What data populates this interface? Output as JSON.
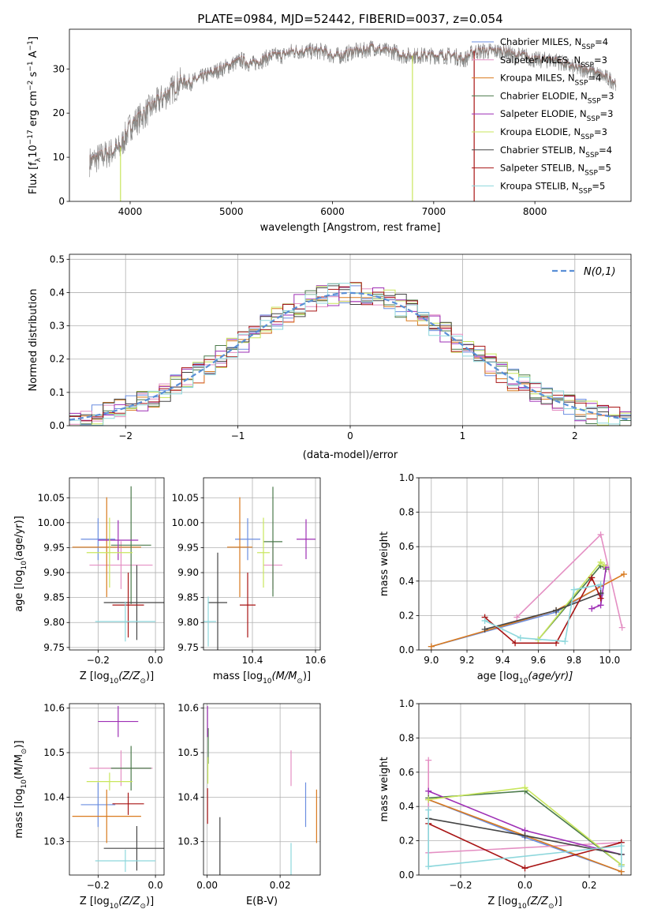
{
  "title": "PLATE=0984, MJD=52442, FIBERID=0037, z=0.054",
  "colors": [
    "#6b8ee0",
    "#e48fc3",
    "#d97a1e",
    "#4b7a4b",
    "#9e2fb5",
    "#c8e65c",
    "#454545",
    "#a81414",
    "#8dd7dc"
  ],
  "gauss_color": "#5a8fd6",
  "chart_data": [
    {
      "id": "spectrum",
      "type": "line",
      "xlabel": "wavelength [Angstrom, rest frame]",
      "ylabel": "Flux [f",
      "ylabel_sub": "λ",
      "ylabel_rest": "10",
      "ylabel_exp": "−17",
      "ylabel_tail": " erg cm",
      "ylabel_exp2": "−2",
      "ylabel_tail2": " s",
      "ylabel_exp3": "−1",
      "ylabel_tail3": " A",
      "ylabel_exp4": "−1",
      "ylabel_end": "]",
      "xlim": [
        3400,
        8950
      ],
      "ylim": [
        0,
        39
      ],
      "xticks": [
        "4000",
        "5000",
        "6000",
        "7000",
        "8000"
      ],
      "xtick_vals": [
        4000,
        5000,
        6000,
        7000,
        8000
      ],
      "yticks": [
        "0",
        "10",
        "20",
        "30"
      ],
      "ytick_vals": [
        0,
        10,
        20,
        30
      ],
      "x": [
        3600,
        3700,
        3800,
        3900,
        4000,
        4100,
        4200,
        4300,
        4400,
        4500,
        4600,
        4700,
        4800,
        4900,
        5000,
        5100,
        5200,
        5300,
        5400,
        5500,
        5600,
        5700,
        5800,
        5900,
        6000,
        6100,
        6200,
        6300,
        6400,
        6500,
        6600,
        6700,
        6800,
        6900,
        7000,
        7100,
        7200,
        7300,
        7400,
        7500,
        7600,
        7700,
        7800,
        7900,
        8000,
        8100,
        8200,
        8300,
        8400,
        8500,
        8600,
        8700,
        8800
      ],
      "y": [
        9,
        10,
        11,
        12,
        17,
        19,
        21,
        23,
        25,
        27,
        27,
        28,
        29,
        30,
        31,
        32,
        31,
        32,
        33,
        33,
        34,
        34,
        34,
        34,
        33,
        33,
        34,
        34,
        35,
        34,
        34,
        33,
        33,
        33,
        33,
        33,
        33,
        32,
        34,
        34,
        34,
        34,
        33,
        33,
        32,
        32,
        32,
        31,
        30,
        30,
        29,
        28,
        27
      ],
      "legend_position": "upper right",
      "series": [
        {
          "name": "Chabrier MILES",
          "nssp": "4"
        },
        {
          "name": "Salpeter MILES",
          "nssp": "3"
        },
        {
          "name": "Kroupa MILES",
          "nssp": "4"
        },
        {
          "name": "Chabrier ELODIE",
          "nssp": "3"
        },
        {
          "name": "Salpeter ELODIE",
          "nssp": "3"
        },
        {
          "name": "Kroupa ELODIE",
          "nssp": "3"
        },
        {
          "name": "Chabrier STELIB",
          "nssp": "4"
        },
        {
          "name": "Salpeter STELIB",
          "nssp": "5"
        },
        {
          "name": "Kroupa STELIB",
          "nssp": "5"
        }
      ],
      "nssp_label": "N",
      "nssp_sub": "SSP"
    },
    {
      "id": "residuals",
      "type": "histogram",
      "xlabel": "(data-model)/error",
      "ylabel": "Normed distribution",
      "xlim": [
        -2.5,
        2.5
      ],
      "ylim": [
        0,
        0.515
      ],
      "xticks": [
        "−2",
        "−1",
        "0",
        "1",
        "2"
      ],
      "xtick_vals": [
        -2,
        -1,
        0,
        1,
        2
      ],
      "yticks": [
        "0.0",
        "0.1",
        "0.2",
        "0.3",
        "0.4",
        "0.5"
      ],
      "ytick_vals": [
        0,
        0.1,
        0.2,
        0.3,
        0.4,
        0.5
      ],
      "grid": true,
      "legend_label": "N(0,1)",
      "legend_position": "upper right"
    },
    {
      "id": "age_vs_Z",
      "type": "scatter",
      "xlabel": "Z [log",
      "xlabel_sub": "10",
      "xlabel_rest": "(Z/Z",
      "xlabel_sub2": "⊙",
      "xlabel_end": ")]",
      "ylabel": "age  [log",
      "ylabel_sub": "10",
      "ylabel_rest": "(age/yr)]",
      "xlim": [
        -0.3,
        0.03
      ],
      "ylim": [
        9.745,
        10.09
      ],
      "xticks": [
        "−0.2",
        "0.0"
      ],
      "xtick_vals": [
        -0.2,
        0.0
      ],
      "yticks": [
        "9.75",
        "9.80",
        "9.85",
        "9.90",
        "9.95",
        "10.00",
        "10.05"
      ],
      "ytick_vals": [
        9.75,
        9.8,
        9.85,
        9.9,
        9.95,
        10.0,
        10.05
      ],
      "grid": true,
      "points": [
        {
          "x": -0.2,
          "y": 9.967,
          "xerr": 0.06,
          "yerr": 0.042
        },
        {
          "x": -0.12,
          "y": 9.915,
          "xerr": 0.11,
          "yerr": 0.048
        },
        {
          "x": -0.17,
          "y": 9.951,
          "xerr": 0.12,
          "yerr": 0.1
        },
        {
          "x": -0.085,
          "y": 9.955,
          "xerr": 0.07,
          "yerr": 0.118
        },
        {
          "x": -0.13,
          "y": 9.965,
          "xerr": 0.07,
          "yerr": 0.04
        },
        {
          "x": -0.16,
          "y": 9.94,
          "xerr": 0.08,
          "yerr": 0.07
        },
        {
          "x": -0.065,
          "y": 9.84,
          "xerr": 0.115,
          "yerr": 0.075
        },
        {
          "x": -0.095,
          "y": 9.835,
          "xerr": 0.055,
          "yerr": 0.065
        },
        {
          "x": -0.105,
          "y": 9.802,
          "xerr": 0.105,
          "yerr": 0.04
        }
      ]
    },
    {
      "id": "age_vs_mass",
      "type": "scatter",
      "xlabel": "mass [log",
      "xlabel_sub": "10",
      "xlabel_rest": "(M/M",
      "xlabel_sub2": "⊙",
      "xlabel_end": ")]",
      "xlim": [
        10.245,
        10.615
      ],
      "ylim": [
        9.745,
        10.09
      ],
      "xticks": [
        "10.4",
        "10.6"
      ],
      "xtick_vals": [
        10.4,
        10.6
      ],
      "yticks": [
        "9.75",
        "9.80",
        "9.85",
        "9.90",
        "9.95",
        "10.00",
        "10.05"
      ],
      "ytick_vals": [
        9.75,
        9.8,
        9.85,
        9.9,
        9.95,
        10.0,
        10.05
      ],
      "grid": true,
      "points": [
        {
          "x": 10.385,
          "y": 9.967,
          "xerr": 0.04,
          "yerr": 0.042
        },
        {
          "x": 10.465,
          "y": 9.915,
          "xerr": 0.03,
          "yerr": 0.048
        },
        {
          "x": 10.36,
          "y": 9.951,
          "xerr": 0.04,
          "yerr": 0.1
        },
        {
          "x": 10.465,
          "y": 9.962,
          "xerr": 0.03,
          "yerr": 0.11
        },
        {
          "x": 10.57,
          "y": 9.967,
          "xerr": 0.03,
          "yerr": 0.04
        },
        {
          "x": 10.435,
          "y": 9.94,
          "xerr": 0.02,
          "yerr": 0.07
        },
        {
          "x": 10.29,
          "y": 9.84,
          "xerr": 0.03,
          "yerr": 0.1
        },
        {
          "x": 10.385,
          "y": 9.835,
          "xerr": 0.025,
          "yerr": 0.065
        },
        {
          "x": 10.26,
          "y": 9.802,
          "xerr": 0.025,
          "yerr": 0.05
        }
      ]
    },
    {
      "id": "weight_vs_age",
      "type": "line",
      "xlabel": "age  [log",
      "xlabel_sub": "10",
      "xlabel_rest": "(age/yr)]",
      "ylabel": "mass weight",
      "xlim": [
        8.93,
        10.12
      ],
      "ylim": [
        0,
        1.0
      ],
      "xticks": [
        "9.0",
        "9.2",
        "9.4",
        "9.6",
        "9.8",
        "10.0"
      ],
      "xtick_vals": [
        9.0,
        9.2,
        9.4,
        9.6,
        9.8,
        10.0
      ],
      "yticks": [
        "0.0",
        "0.2",
        "0.4",
        "0.6",
        "0.8",
        "1.0"
      ],
      "ytick_vals": [
        0,
        0.2,
        0.4,
        0.6,
        0.8,
        1.0
      ],
      "grid": true,
      "series": [
        {
          "x": [
            9.0,
            9.7,
            9.95,
            9.95
          ],
          "y": [
            0.02,
            0.22,
            0.37,
            0.32
          ]
        },
        {
          "x": [
            9.48,
            9.95,
            10.07
          ],
          "y": [
            0.19,
            0.67,
            0.13
          ]
        },
        {
          "x": [
            9.0,
            9.7,
            10.08
          ],
          "y": [
            0.02,
            0.23,
            0.44
          ]
        },
        {
          "x": [
            9.6,
            9.95,
            9.98
          ],
          "y": [
            0.06,
            0.49,
            0.47
          ]
        },
        {
          "x": [
            9.9,
            9.95,
            9.98
          ],
          "y": [
            0.24,
            0.26,
            0.48
          ]
        },
        {
          "x": [
            9.6,
            9.95,
            9.97
          ],
          "y": [
            0.06,
            0.51,
            0.49
          ]
        },
        {
          "x": [
            9.3,
            9.7,
            9.95
          ],
          "y": [
            0.12,
            0.23,
            0.33
          ]
        },
        {
          "x": [
            9.3,
            9.47,
            9.7,
            9.9,
            9.95
          ],
          "y": [
            0.19,
            0.04,
            0.04,
            0.42,
            0.3
          ]
        },
        {
          "x": [
            9.3,
            9.5,
            9.75,
            9.8,
            9.95
          ],
          "y": [
            0.17,
            0.07,
            0.05,
            0.35,
            0.38
          ]
        }
      ]
    },
    {
      "id": "mass_vs_Z",
      "type": "scatter",
      "xlabel": "Z [log",
      "xlabel_sub": "10",
      "xlabel_rest": "(Z/Z",
      "xlabel_sub2": "⊙",
      "xlabel_end": ")]",
      "ylabel": "mass [log",
      "ylabel_sub": "10",
      "ylabel_rest": "(M/M",
      "ylabel_sub2": "⊙",
      "ylabel_end": ")]",
      "xlim": [
        -0.3,
        0.03
      ],
      "ylim": [
        10.225,
        10.61
      ],
      "xticks": [
        "−0.2",
        "0.0"
      ],
      "xtick_vals": [
        -0.2,
        0.0
      ],
      "yticks": [
        "10.3",
        "10.4",
        "10.5",
        "10.6"
      ],
      "ytick_vals": [
        10.3,
        10.4,
        10.5,
        10.6
      ],
      "grid": true,
      "points": [
        {
          "x": -0.2,
          "y": 10.383,
          "xerr": 0.06,
          "yerr": 0.05
        },
        {
          "x": -0.12,
          "y": 10.465,
          "xerr": 0.11,
          "yerr": 0.04
        },
        {
          "x": -0.17,
          "y": 10.357,
          "xerr": 0.12,
          "yerr": 0.06
        },
        {
          "x": -0.085,
          "y": 10.465,
          "xerr": 0.07,
          "yerr": 0.05
        },
        {
          "x": -0.13,
          "y": 10.57,
          "xerr": 0.07,
          "yerr": 0.035
        },
        {
          "x": -0.16,
          "y": 10.435,
          "xerr": 0.08,
          "yerr": 0.02
        },
        {
          "x": -0.065,
          "y": 10.285,
          "xerr": 0.115,
          "yerr": 0.05
        },
        {
          "x": -0.095,
          "y": 10.385,
          "xerr": 0.055,
          "yerr": 0.025
        },
        {
          "x": -0.105,
          "y": 10.257,
          "xerr": 0.105,
          "yerr": 0.025
        }
      ]
    },
    {
      "id": "mass_vs_ebv",
      "type": "scatter",
      "xlabel": "E(B-V)",
      "xlim": [
        -0.001,
        0.031
      ],
      "ylim": [
        10.225,
        10.61
      ],
      "xticks": [
        "0.00",
        "0.02"
      ],
      "xtick_vals": [
        0.0,
        0.02
      ],
      "yticks": [
        "10.3",
        "10.4",
        "10.5",
        "10.6"
      ],
      "ytick_vals": [
        10.3,
        10.4,
        10.5,
        10.6
      ],
      "grid": true,
      "points": [
        {
          "x": 0.027,
          "y": 10.383,
          "xerr": 0,
          "yerr": 0.05
        },
        {
          "x": 0.023,
          "y": 10.465,
          "xerr": 0,
          "yerr": 0.04
        },
        {
          "x": 0.03,
          "y": 10.357,
          "xerr": 0,
          "yerr": 0.06
        },
        {
          "x": 0.0003,
          "y": 10.515,
          "xerr": 0,
          "yerr": 0.04
        },
        {
          "x": 0.0001,
          "y": 10.57,
          "xerr": 0,
          "yerr": 0.035
        },
        {
          "x": 0.0002,
          "y": 10.46,
          "xerr": 0,
          "yerr": 0.03
        },
        {
          "x": 0.0035,
          "y": 10.285,
          "xerr": 0,
          "yerr": 0.07
        },
        {
          "x": 0.0001,
          "y": 10.38,
          "xerr": 0,
          "yerr": 0.04
        },
        {
          "x": 0.023,
          "y": 10.257,
          "xerr": 0,
          "yerr": 0.04
        }
      ]
    },
    {
      "id": "weight_vs_Z",
      "type": "line",
      "xlabel": "Z [log",
      "xlabel_sub": "10",
      "xlabel_rest": "(Z/Z",
      "xlabel_sub2": "⊙",
      "xlabel_end": ")]",
      "ylabel": "mass weight",
      "xlim": [
        -0.33,
        0.33
      ],
      "ylim": [
        0,
        1.0
      ],
      "xticks": [
        "−0.2",
        "0.0",
        "0.2"
      ],
      "xtick_vals": [
        -0.2,
        0.0,
        0.2
      ],
      "yticks": [
        "0.0",
        "0.2",
        "0.4",
        "0.6",
        "0.8",
        "1.0"
      ],
      "ytick_vals": [
        0,
        0.2,
        0.4,
        0.6,
        0.8,
        1.0
      ],
      "grid": true,
      "series": [
        {
          "x": [
            -0.3,
            0.0,
            0.3
          ],
          "y": [
            0.44,
            0.22,
            0.02
          ]
        },
        {
          "x": [
            -0.3,
            -0.3,
            0.3,
            0.3
          ],
          "y": [
            0.67,
            0.13,
            0.19,
            0.19
          ]
        },
        {
          "x": [
            -0.3,
            0.0,
            0.3
          ],
          "y": [
            0.44,
            0.23,
            0.02
          ]
        },
        {
          "x": [
            -0.3,
            0.0,
            0.3
          ],
          "y": [
            0.45,
            0.49,
            0.06
          ]
        },
        {
          "x": [
            -0.3,
            0.0,
            0.3
          ],
          "y": [
            0.49,
            0.26,
            0.12
          ]
        },
        {
          "x": [
            -0.3,
            0.0,
            0.3
          ],
          "y": [
            0.44,
            0.51,
            0.06
          ]
        },
        {
          "x": [
            -0.3,
            0.0,
            0.3
          ],
          "y": [
            0.33,
            0.23,
            0.12
          ]
        },
        {
          "x": [
            -0.3,
            0.0,
            0.3
          ],
          "y": [
            0.3,
            0.04,
            0.19
          ]
        },
        {
          "x": [
            -0.3,
            -0.3,
            0.3,
            0.3
          ],
          "y": [
            0.38,
            0.05,
            0.17,
            0.05
          ]
        }
      ]
    }
  ]
}
